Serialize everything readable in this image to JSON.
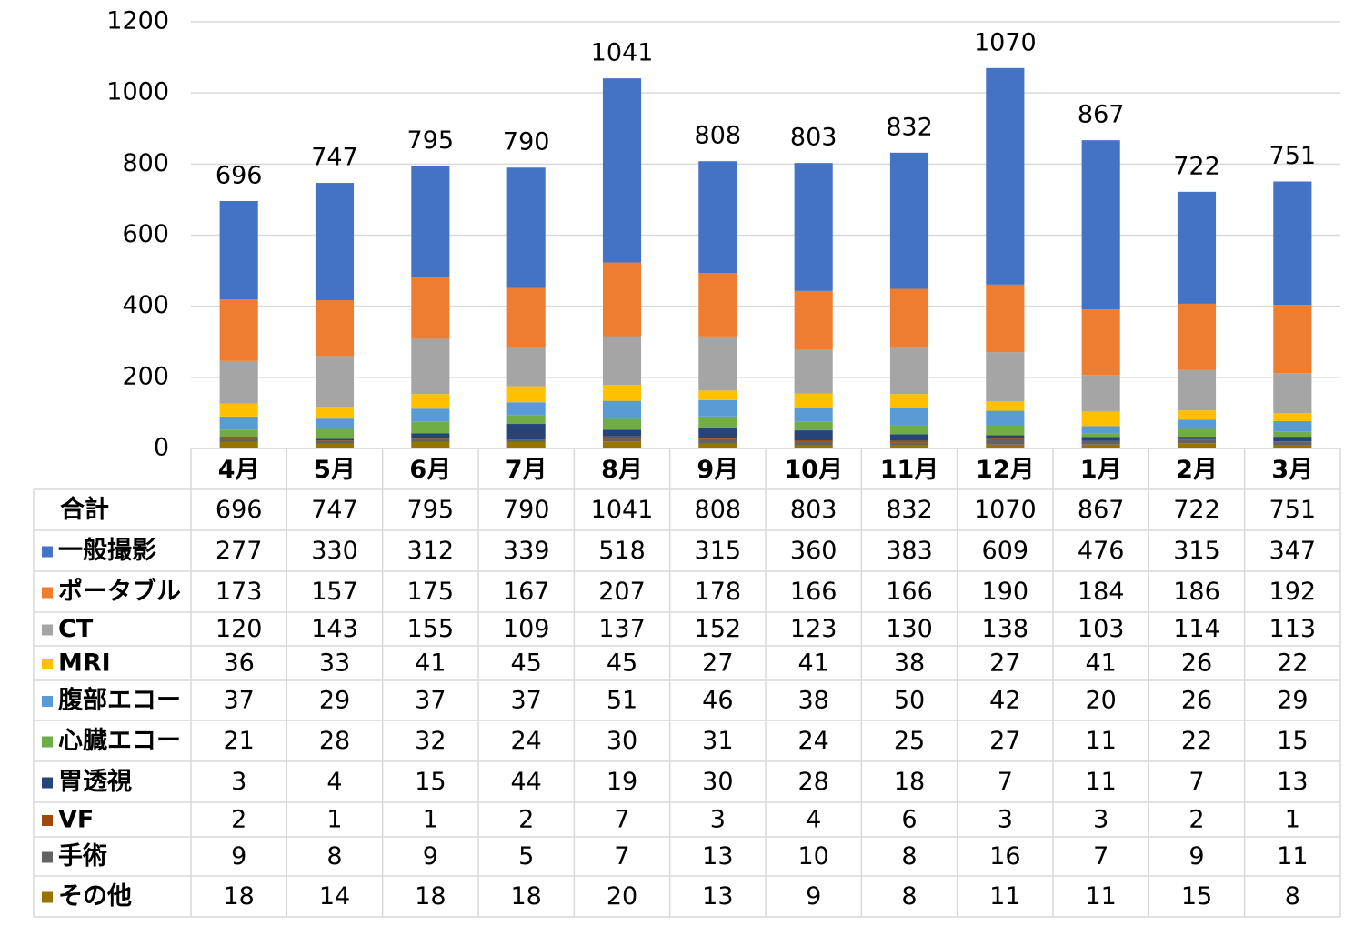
{
  "chart_data": {
    "type": "bar",
    "stacked": true,
    "categories": [
      "4月",
      "5月",
      "6月",
      "7月",
      "8月",
      "9月",
      "10月",
      "11月",
      "12月",
      "1月",
      "2月",
      "3月"
    ],
    "totals": {
      "name": "合計",
      "values": [
        696,
        747,
        795,
        790,
        1041,
        808,
        803,
        832,
        1070,
        867,
        722,
        751
      ]
    },
    "series": [
      {
        "name": "一般撮影",
        "color": "#4472c4",
        "values": [
          277,
          330,
          312,
          339,
          518,
          315,
          360,
          383,
          609,
          476,
          315,
          347
        ]
      },
      {
        "name": "ポータブル",
        "color": "#ed7d31",
        "values": [
          173,
          157,
          175,
          167,
          207,
          178,
          166,
          166,
          190,
          184,
          186,
          192
        ]
      },
      {
        "name": "CT",
        "color": "#a5a5a5",
        "values": [
          120,
          143,
          155,
          109,
          137,
          152,
          123,
          130,
          138,
          103,
          114,
          113
        ]
      },
      {
        "name": "MRI",
        "color": "#ffc000",
        "values": [
          36,
          33,
          41,
          45,
          45,
          27,
          41,
          38,
          27,
          41,
          26,
          22
        ]
      },
      {
        "name": "腹部エコー",
        "color": "#5b9bd5",
        "values": [
          37,
          29,
          37,
          37,
          51,
          46,
          38,
          50,
          42,
          20,
          26,
          29
        ]
      },
      {
        "name": "心臓エコー",
        "color": "#70ad47",
        "values": [
          21,
          28,
          32,
          24,
          30,
          31,
          24,
          25,
          27,
          11,
          22,
          15
        ]
      },
      {
        "name": "胃透視",
        "color": "#264478",
        "values": [
          3,
          4,
          15,
          44,
          19,
          30,
          28,
          18,
          7,
          11,
          7,
          13
        ]
      },
      {
        "name": "VF",
        "color": "#9e480e",
        "values": [
          2,
          1,
          1,
          2,
          7,
          3,
          4,
          6,
          3,
          3,
          2,
          1
        ]
      },
      {
        "name": "手術",
        "color": "#636363",
        "values": [
          9,
          8,
          9,
          5,
          7,
          13,
          10,
          8,
          16,
          7,
          9,
          11
        ]
      },
      {
        "name": "その他",
        "color": "#997300",
        "values": [
          18,
          14,
          18,
          18,
          20,
          13,
          9,
          8,
          11,
          11,
          15,
          8
        ]
      }
    ],
    "ylim": [
      0,
      1200
    ],
    "yticks": [
      0,
      200,
      400,
      600,
      800,
      1000,
      1200
    ],
    "grid": true
  }
}
